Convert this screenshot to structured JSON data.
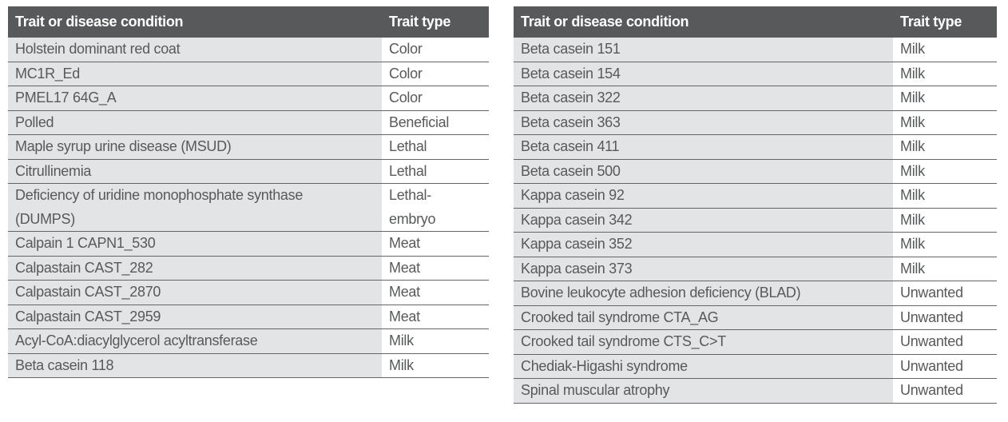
{
  "colors": {
    "header_bg": "#58595b",
    "header_text": "#ffffff",
    "row_shaded_bg": "#e3e4e5",
    "row_type_bg": "#ffffff",
    "divider": "#646568",
    "body_text": "#58595b"
  },
  "tables": [
    {
      "name": "left",
      "headers": {
        "condition": "Trait or disease condition",
        "type": "Trait type"
      },
      "rows": [
        {
          "condition": "Holstein dominant red coat",
          "type": "Color"
        },
        {
          "condition": "MC1R_Ed",
          "type": "Color"
        },
        {
          "condition": "PMEL17 64G_A",
          "type": "Color"
        },
        {
          "condition": "Polled",
          "type": "Beneficial"
        },
        {
          "condition": "Maple syrup urine disease (MSUD)",
          "type": "Lethal"
        },
        {
          "condition": "Citrullinemia",
          "type": "Lethal"
        },
        {
          "condition": "Deficiency of uridine monophosphate synthase (DUMPS)",
          "type": "Lethal-embryo"
        },
        {
          "condition": "Calpain 1 CAPN1_530",
          "type": "Meat"
        },
        {
          "condition": "Calpastain CAST_282",
          "type": "Meat"
        },
        {
          "condition": "Calpastain CAST_2870",
          "type": "Meat"
        },
        {
          "condition": "Calpastain CAST_2959",
          "type": "Meat"
        },
        {
          "condition": "Acyl-CoA:diacylglycerol acyltransferase",
          "type": "Milk"
        },
        {
          "condition": "Beta casein 118",
          "type": "Milk"
        }
      ]
    },
    {
      "name": "right",
      "headers": {
        "condition": "Trait or disease condition",
        "type": "Trait type"
      },
      "rows": [
        {
          "condition": "Beta casein 151",
          "type": "Milk"
        },
        {
          "condition": "Beta casein 154",
          "type": "Milk"
        },
        {
          "condition": "Beta casein 322",
          "type": "Milk"
        },
        {
          "condition": "Beta casein 363",
          "type": "Milk"
        },
        {
          "condition": "Beta casein 411",
          "type": "Milk"
        },
        {
          "condition": "Beta casein 500",
          "type": "Milk"
        },
        {
          "condition": "Kappa casein 92",
          "type": "Milk"
        },
        {
          "condition": "Kappa casein 342",
          "type": "Milk"
        },
        {
          "condition": "Kappa casein 352",
          "type": "Milk"
        },
        {
          "condition": "Kappa casein 373",
          "type": "Milk"
        },
        {
          "condition": "Bovine leukocyte adhesion deficiency (BLAD)",
          "type": "Unwanted"
        },
        {
          "condition": "Crooked tail syndrome CTA_AG",
          "type": "Unwanted"
        },
        {
          "condition": "Crooked tail syndrome CTS_C>T",
          "type": "Unwanted"
        },
        {
          "condition": "Chediak-Higashi syndrome",
          "type": "Unwanted"
        },
        {
          "condition": "Spinal muscular atrophy",
          "type": "Unwanted"
        }
      ]
    }
  ]
}
